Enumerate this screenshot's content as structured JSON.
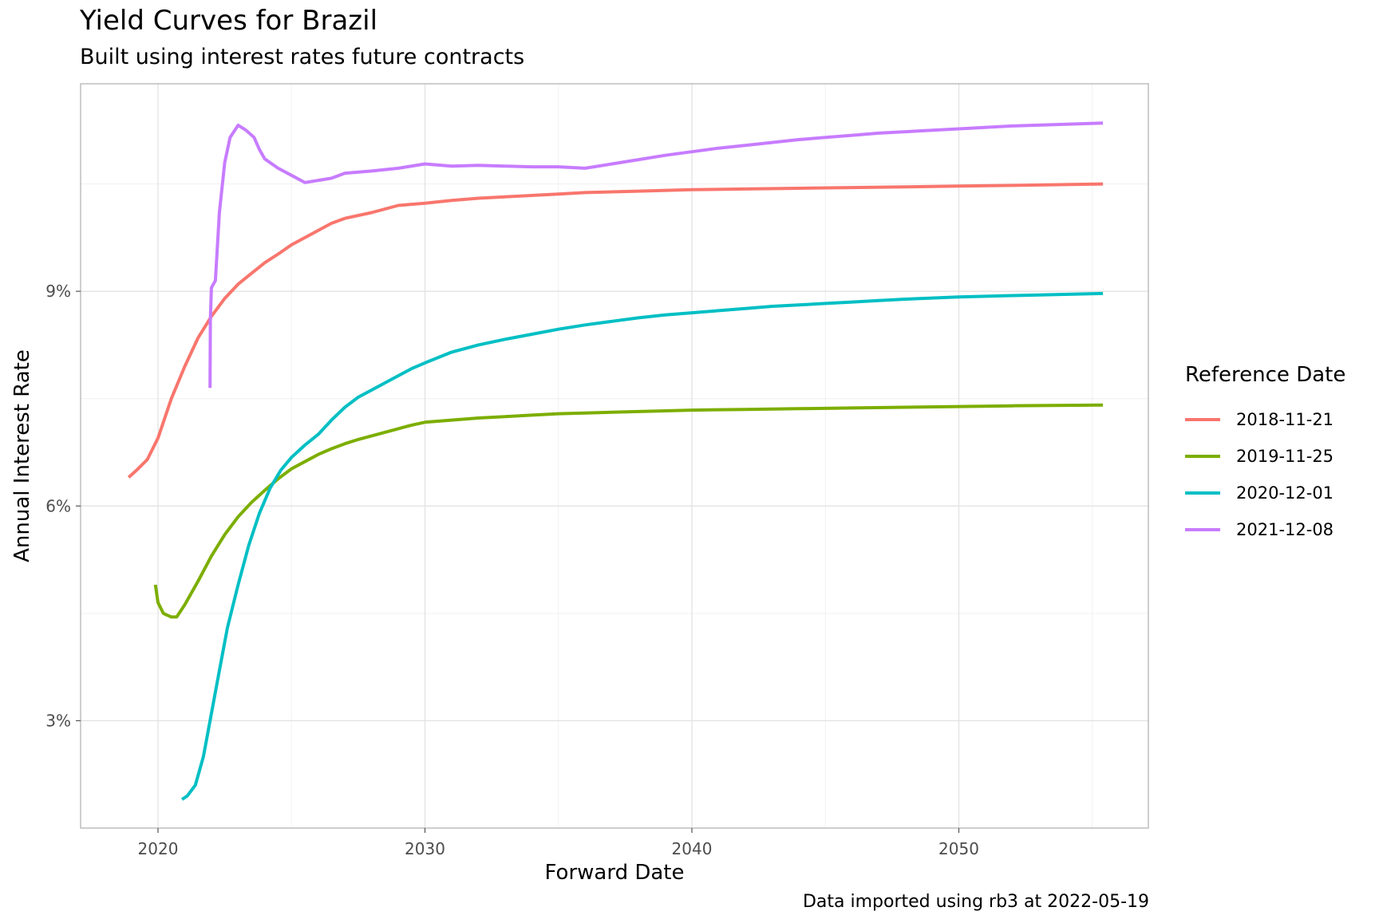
{
  "title": "Yield Curves for Brazil",
  "subtitle": "Built using interest rates future contracts",
  "caption": "Data imported using rb3 at 2022-05-19",
  "chart_data": {
    "type": "line",
    "title": "Yield Curves for Brazil",
    "subtitle": "Built using interest rates future contracts",
    "xlabel": "Forward Date",
    "ylabel": "Annual Interest Rate",
    "xlim": [
      2017.1,
      2057.1
    ],
    "ylim": [
      1.5,
      11.9
    ],
    "x_ticks": [
      2020,
      2030,
      2040,
      2050
    ],
    "x_tick_labels": [
      "2020",
      "2030",
      "2040",
      "2050"
    ],
    "y_ticks": [
      3,
      6,
      9
    ],
    "y_tick_labels": [
      "3%",
      "6%",
      "9%"
    ],
    "grid": true,
    "legend": {
      "title": "Reference Date",
      "position": "right"
    },
    "series": [
      {
        "name": "2018-11-21",
        "color": "#F8766D",
        "points": [
          [
            2018.9,
            6.4
          ],
          [
            2019.2,
            6.5
          ],
          [
            2019.6,
            6.65
          ],
          [
            2020.0,
            6.95
          ],
          [
            2020.5,
            7.5
          ],
          [
            2021.0,
            7.95
          ],
          [
            2021.5,
            8.35
          ],
          [
            2022.0,
            8.65
          ],
          [
            2022.5,
            8.9
          ],
          [
            2023.0,
            9.1
          ],
          [
            2023.5,
            9.25
          ],
          [
            2024.0,
            9.4
          ],
          [
            2024.5,
            9.52
          ],
          [
            2025.0,
            9.65
          ],
          [
            2025.5,
            9.75
          ],
          [
            2026.0,
            9.85
          ],
          [
            2026.5,
            9.95
          ],
          [
            2027.0,
            10.02
          ],
          [
            2028.0,
            10.1
          ],
          [
            2029.0,
            10.2
          ],
          [
            2030.0,
            10.23
          ],
          [
            2031.0,
            10.27
          ],
          [
            2032.0,
            10.3
          ],
          [
            2033.0,
            10.32
          ],
          [
            2034.0,
            10.34
          ],
          [
            2035.0,
            10.36
          ],
          [
            2036.0,
            10.38
          ],
          [
            2037.0,
            10.39
          ],
          [
            2038.0,
            10.4
          ],
          [
            2040.0,
            10.42
          ],
          [
            2042.0,
            10.43
          ],
          [
            2044.0,
            10.44
          ],
          [
            2046.0,
            10.45
          ],
          [
            2048.0,
            10.46
          ],
          [
            2050.0,
            10.47
          ],
          [
            2052.0,
            10.48
          ],
          [
            2055.4,
            10.5
          ]
        ]
      },
      {
        "name": "2019-11-25",
        "color": "#7CAE00",
        "points": [
          [
            2019.9,
            4.9
          ],
          [
            2020.0,
            4.65
          ],
          [
            2020.2,
            4.5
          ],
          [
            2020.5,
            4.45
          ],
          [
            2020.7,
            4.45
          ],
          [
            2021.0,
            4.62
          ],
          [
            2021.5,
            4.95
          ],
          [
            2022.0,
            5.3
          ],
          [
            2022.5,
            5.6
          ],
          [
            2023.0,
            5.85
          ],
          [
            2023.5,
            6.05
          ],
          [
            2024.0,
            6.22
          ],
          [
            2024.5,
            6.38
          ],
          [
            2025.0,
            6.52
          ],
          [
            2025.5,
            6.62
          ],
          [
            2026.0,
            6.72
          ],
          [
            2026.5,
            6.8
          ],
          [
            2027.0,
            6.87
          ],
          [
            2027.5,
            6.93
          ],
          [
            2028.0,
            6.98
          ],
          [
            2028.5,
            7.03
          ],
          [
            2029.0,
            7.08
          ],
          [
            2029.5,
            7.13
          ],
          [
            2030.0,
            7.17
          ],
          [
            2031.0,
            7.2
          ],
          [
            2032.0,
            7.23
          ],
          [
            2033.0,
            7.25
          ],
          [
            2034.0,
            7.27
          ],
          [
            2035.0,
            7.29
          ],
          [
            2036.0,
            7.3
          ],
          [
            2037.0,
            7.31
          ],
          [
            2038.0,
            7.32
          ],
          [
            2040.0,
            7.34
          ],
          [
            2042.0,
            7.35
          ],
          [
            2044.0,
            7.36
          ],
          [
            2046.0,
            7.37
          ],
          [
            2048.0,
            7.38
          ],
          [
            2050.0,
            7.39
          ],
          [
            2052.0,
            7.4
          ],
          [
            2055.4,
            7.41
          ]
        ]
      },
      {
        "name": "2020-12-01",
        "color": "#00BFC4",
        "points": [
          [
            2020.9,
            1.9
          ],
          [
            2021.1,
            1.95
          ],
          [
            2021.4,
            2.1
          ],
          [
            2021.7,
            2.5
          ],
          [
            2022.0,
            3.1
          ],
          [
            2022.3,
            3.7
          ],
          [
            2022.6,
            4.3
          ],
          [
            2023.0,
            4.9
          ],
          [
            2023.4,
            5.45
          ],
          [
            2023.8,
            5.9
          ],
          [
            2024.2,
            6.25
          ],
          [
            2024.6,
            6.5
          ],
          [
            2025.0,
            6.68
          ],
          [
            2025.5,
            6.85
          ],
          [
            2026.0,
            7.0
          ],
          [
            2026.5,
            7.2
          ],
          [
            2027.0,
            7.38
          ],
          [
            2027.5,
            7.52
          ],
          [
            2028.0,
            7.62
          ],
          [
            2028.5,
            7.72
          ],
          [
            2029.0,
            7.82
          ],
          [
            2029.5,
            7.92
          ],
          [
            2030.0,
            8.0
          ],
          [
            2031.0,
            8.15
          ],
          [
            2032.0,
            8.25
          ],
          [
            2033.0,
            8.33
          ],
          [
            2034.0,
            8.4
          ],
          [
            2035.0,
            8.47
          ],
          [
            2036.0,
            8.53
          ],
          [
            2037.0,
            8.58
          ],
          [
            2038.0,
            8.63
          ],
          [
            2039.0,
            8.67
          ],
          [
            2040.0,
            8.7
          ],
          [
            2041.0,
            8.73
          ],
          [
            2042.0,
            8.76
          ],
          [
            2043.0,
            8.79
          ],
          [
            2044.0,
            8.81
          ],
          [
            2045.0,
            8.83
          ],
          [
            2046.0,
            8.85
          ],
          [
            2047.0,
            8.87
          ],
          [
            2048.0,
            8.89
          ],
          [
            2050.0,
            8.92
          ],
          [
            2052.0,
            8.94
          ],
          [
            2055.4,
            8.97
          ]
        ]
      },
      {
        "name": "2021-12-08",
        "color": "#C77CFF",
        "points": [
          [
            2021.95,
            7.65
          ],
          [
            2021.96,
            8.6
          ],
          [
            2022.0,
            9.05
          ],
          [
            2022.15,
            9.15
          ],
          [
            2022.3,
            10.1
          ],
          [
            2022.5,
            10.8
          ],
          [
            2022.7,
            11.15
          ],
          [
            2023.0,
            11.32
          ],
          [
            2023.3,
            11.25
          ],
          [
            2023.6,
            11.15
          ],
          [
            2023.8,
            10.98
          ],
          [
            2024.0,
            10.85
          ],
          [
            2024.5,
            10.72
          ],
          [
            2025.0,
            10.62
          ],
          [
            2025.5,
            10.52
          ],
          [
            2026.0,
            10.55
          ],
          [
            2026.5,
            10.58
          ],
          [
            2027.0,
            10.65
          ],
          [
            2028.0,
            10.68
          ],
          [
            2029.0,
            10.72
          ],
          [
            2030.0,
            10.78
          ],
          [
            2031.0,
            10.75
          ],
          [
            2032.0,
            10.76
          ],
          [
            2033.0,
            10.75
          ],
          [
            2034.0,
            10.74
          ],
          [
            2035.0,
            10.74
          ],
          [
            2036.0,
            10.72
          ],
          [
            2037.0,
            10.78
          ],
          [
            2038.0,
            10.84
          ],
          [
            2039.0,
            10.9
          ],
          [
            2040.0,
            10.95
          ],
          [
            2041.0,
            11.0
          ],
          [
            2042.0,
            11.04
          ],
          [
            2043.0,
            11.08
          ],
          [
            2044.0,
            11.12
          ],
          [
            2045.0,
            11.15
          ],
          [
            2046.0,
            11.18
          ],
          [
            2047.0,
            11.21
          ],
          [
            2048.0,
            11.23
          ],
          [
            2050.0,
            11.27
          ],
          [
            2052.0,
            11.31
          ],
          [
            2055.4,
            11.35
          ]
        ]
      }
    ]
  }
}
